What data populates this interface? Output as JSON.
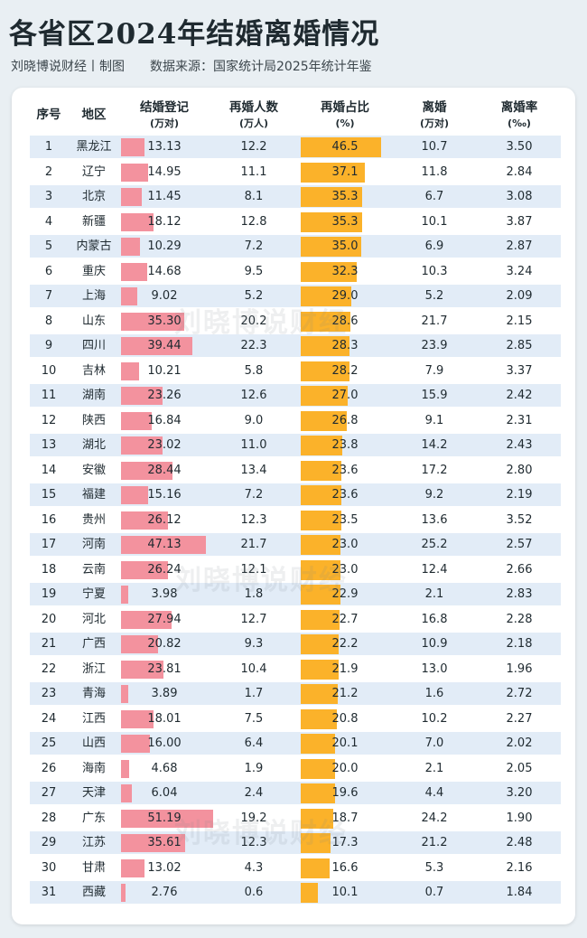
{
  "page": {
    "title": "各省区2024年结婚离婚情况",
    "subtitle_left": "刘晓博说财经丨制图",
    "subtitle_right": "数据来源：国家统计局2025年统计年鉴",
    "watermark": "刘晓博说财经"
  },
  "colors": {
    "marriage_bar": "#f3929e",
    "remarriage_bar": "#fbb22a",
    "stripe": "#e2ecf7"
  },
  "chart_data": {
    "type": "table",
    "columns": [
      {
        "key": "rank",
        "label": "序号",
        "unit": ""
      },
      {
        "key": "region",
        "label": "地区",
        "unit": ""
      },
      {
        "key": "marriages",
        "label": "结婚登记",
        "unit": "(万对)"
      },
      {
        "key": "remarriers",
        "label": "再婚人数",
        "unit": "(万人)"
      },
      {
        "key": "remarriage_pct",
        "label": "再婚占比",
        "unit": "(%)"
      },
      {
        "key": "divorces",
        "label": "离婚",
        "unit": "(万对)"
      },
      {
        "key": "divorce_rate",
        "label": "离婚率",
        "unit": "(‰)"
      }
    ],
    "rows": [
      {
        "rank": "1",
        "region": "黑龙江",
        "marriages": 13.13,
        "marriages_text": "13.13",
        "remarriers": "12.2",
        "remarriage_pct": 46.5,
        "remarriage_pct_text": "46.5",
        "divorces": "10.7",
        "divorce_rate": "3.50"
      },
      {
        "rank": "2",
        "region": "辽宁",
        "marriages": 14.95,
        "marriages_text": "14.95",
        "remarriers": "11.1",
        "remarriage_pct": 37.1,
        "remarriage_pct_text": "37.1",
        "divorces": "11.8",
        "divorce_rate": "2.84"
      },
      {
        "rank": "3",
        "region": "北京",
        "marriages": 11.45,
        "marriages_text": "11.45",
        "remarriers": "8.1",
        "remarriage_pct": 35.3,
        "remarriage_pct_text": "35.3",
        "divorces": "6.7",
        "divorce_rate": "3.08"
      },
      {
        "rank": "4",
        "region": "新疆",
        "marriages": 18.12,
        "marriages_text": "18.12",
        "remarriers": "12.8",
        "remarriage_pct": 35.3,
        "remarriage_pct_text": "35.3",
        "divorces": "10.1",
        "divorce_rate": "3.87"
      },
      {
        "rank": "5",
        "region": "内蒙古",
        "marriages": 10.29,
        "marriages_text": "10.29",
        "remarriers": "7.2",
        "remarriage_pct": 35.0,
        "remarriage_pct_text": "35.0",
        "divorces": "6.9",
        "divorce_rate": "2.87"
      },
      {
        "rank": "6",
        "region": "重庆",
        "marriages": 14.68,
        "marriages_text": "14.68",
        "remarriers": "9.5",
        "remarriage_pct": 32.3,
        "remarriage_pct_text": "32.3",
        "divorces": "10.3",
        "divorce_rate": "3.24"
      },
      {
        "rank": "7",
        "region": "上海",
        "marriages": 9.02,
        "marriages_text": "9.02",
        "remarriers": "5.2",
        "remarriage_pct": 29.0,
        "remarriage_pct_text": "29.0",
        "divorces": "5.2",
        "divorce_rate": "2.09"
      },
      {
        "rank": "8",
        "region": "山东",
        "marriages": 35.3,
        "marriages_text": "35.30",
        "remarriers": "20.2",
        "remarriage_pct": 28.6,
        "remarriage_pct_text": "28.6",
        "divorces": "21.7",
        "divorce_rate": "2.15"
      },
      {
        "rank": "9",
        "region": "四川",
        "marriages": 39.44,
        "marriages_text": "39.44",
        "remarriers": "22.3",
        "remarriage_pct": 28.3,
        "remarriage_pct_text": "28.3",
        "divorces": "23.9",
        "divorce_rate": "2.85"
      },
      {
        "rank": "10",
        "region": "吉林",
        "marriages": 10.21,
        "marriages_text": "10.21",
        "remarriers": "5.8",
        "remarriage_pct": 28.2,
        "remarriage_pct_text": "28.2",
        "divorces": "7.9",
        "divorce_rate": "3.37"
      },
      {
        "rank": "11",
        "region": "湖南",
        "marriages": 23.26,
        "marriages_text": "23.26",
        "remarriers": "12.6",
        "remarriage_pct": 27.0,
        "remarriage_pct_text": "27.0",
        "divorces": "15.9",
        "divorce_rate": "2.42"
      },
      {
        "rank": "12",
        "region": "陕西",
        "marriages": 16.84,
        "marriages_text": "16.84",
        "remarriers": "9.0",
        "remarriage_pct": 26.8,
        "remarriage_pct_text": "26.8",
        "divorces": "9.1",
        "divorce_rate": "2.31"
      },
      {
        "rank": "13",
        "region": "湖北",
        "marriages": 23.02,
        "marriages_text": "23.02",
        "remarriers": "11.0",
        "remarriage_pct": 23.8,
        "remarriage_pct_text": "23.8",
        "divorces": "14.2",
        "divorce_rate": "2.43"
      },
      {
        "rank": "14",
        "region": "安徽",
        "marriages": 28.44,
        "marriages_text": "28.44",
        "remarriers": "13.4",
        "remarriage_pct": 23.6,
        "remarriage_pct_text": "23.6",
        "divorces": "17.2",
        "divorce_rate": "2.80"
      },
      {
        "rank": "15",
        "region": "福建",
        "marriages": 15.16,
        "marriages_text": "15.16",
        "remarriers": "7.2",
        "remarriage_pct": 23.6,
        "remarriage_pct_text": "23.6",
        "divorces": "9.2",
        "divorce_rate": "2.19"
      },
      {
        "rank": "16",
        "region": "贵州",
        "marriages": 26.12,
        "marriages_text": "26.12",
        "remarriers": "12.3",
        "remarriage_pct": 23.5,
        "remarriage_pct_text": "23.5",
        "divorces": "13.6",
        "divorce_rate": "3.52"
      },
      {
        "rank": "17",
        "region": "河南",
        "marriages": 47.13,
        "marriages_text": "47.13",
        "remarriers": "21.7",
        "remarriage_pct": 23.0,
        "remarriage_pct_text": "23.0",
        "divorces": "25.2",
        "divorce_rate": "2.57"
      },
      {
        "rank": "18",
        "region": "云南",
        "marriages": 26.24,
        "marriages_text": "26.24",
        "remarriers": "12.1",
        "remarriage_pct": 23.0,
        "remarriage_pct_text": "23.0",
        "divorces": "12.4",
        "divorce_rate": "2.66"
      },
      {
        "rank": "19",
        "region": "宁夏",
        "marriages": 3.98,
        "marriages_text": "3.98",
        "remarriers": "1.8",
        "remarriage_pct": 22.9,
        "remarriage_pct_text": "22.9",
        "divorces": "2.1",
        "divorce_rate": "2.83"
      },
      {
        "rank": "20",
        "region": "河北",
        "marriages": 27.94,
        "marriages_text": "27.94",
        "remarriers": "12.7",
        "remarriage_pct": 22.7,
        "remarriage_pct_text": "22.7",
        "divorces": "16.8",
        "divorce_rate": "2.28"
      },
      {
        "rank": "21",
        "region": "广西",
        "marriages": 20.82,
        "marriages_text": "20.82",
        "remarriers": "9.3",
        "remarriage_pct": 22.2,
        "remarriage_pct_text": "22.2",
        "divorces": "10.9",
        "divorce_rate": "2.18"
      },
      {
        "rank": "22",
        "region": "浙江",
        "marriages": 23.81,
        "marriages_text": "23.81",
        "remarriers": "10.4",
        "remarriage_pct": 21.9,
        "remarriage_pct_text": "21.9",
        "divorces": "13.0",
        "divorce_rate": "1.96"
      },
      {
        "rank": "23",
        "region": "青海",
        "marriages": 3.89,
        "marriages_text": "3.89",
        "remarriers": "1.7",
        "remarriage_pct": 21.2,
        "remarriage_pct_text": "21.2",
        "divorces": "1.6",
        "divorce_rate": "2.72"
      },
      {
        "rank": "24",
        "region": "江西",
        "marriages": 18.01,
        "marriages_text": "18.01",
        "remarriers": "7.5",
        "remarriage_pct": 20.8,
        "remarriage_pct_text": "20.8",
        "divorces": "10.2",
        "divorce_rate": "2.27"
      },
      {
        "rank": "25",
        "region": "山西",
        "marriages": 16.0,
        "marriages_text": "16.00",
        "remarriers": "6.4",
        "remarriage_pct": 20.1,
        "remarriage_pct_text": "20.1",
        "divorces": "7.0",
        "divorce_rate": "2.02"
      },
      {
        "rank": "26",
        "region": "海南",
        "marriages": 4.68,
        "marriages_text": "4.68",
        "remarriers": "1.9",
        "remarriage_pct": 20.0,
        "remarriage_pct_text": "20.0",
        "divorces": "2.1",
        "divorce_rate": "2.05"
      },
      {
        "rank": "27",
        "region": "天津",
        "marriages": 6.04,
        "marriages_text": "6.04",
        "remarriers": "2.4",
        "remarriage_pct": 19.6,
        "remarriage_pct_text": "19.6",
        "divorces": "4.4",
        "divorce_rate": "3.20"
      },
      {
        "rank": "28",
        "region": "广东",
        "marriages": 51.19,
        "marriages_text": "51.19",
        "remarriers": "19.2",
        "remarriage_pct": 18.7,
        "remarriage_pct_text": "18.7",
        "divorces": "24.2",
        "divorce_rate": "1.90"
      },
      {
        "rank": "29",
        "region": "江苏",
        "marriages": 35.61,
        "marriages_text": "35.61",
        "remarriers": "12.3",
        "remarriage_pct": 17.3,
        "remarriage_pct_text": "17.3",
        "divorces": "21.2",
        "divorce_rate": "2.48"
      },
      {
        "rank": "30",
        "region": "甘肃",
        "marriages": 13.02,
        "marriages_text": "13.02",
        "remarriers": "4.3",
        "remarriage_pct": 16.6,
        "remarriage_pct_text": "16.6",
        "divorces": "5.3",
        "divorce_rate": "2.16"
      },
      {
        "rank": "31",
        "region": "西藏",
        "marriages": 2.76,
        "marriages_text": "2.76",
        "remarriers": "0.6",
        "remarriage_pct": 10.1,
        "remarriage_pct_text": "10.1",
        "divorces": "0.7",
        "divorce_rate": "1.84"
      }
    ]
  }
}
